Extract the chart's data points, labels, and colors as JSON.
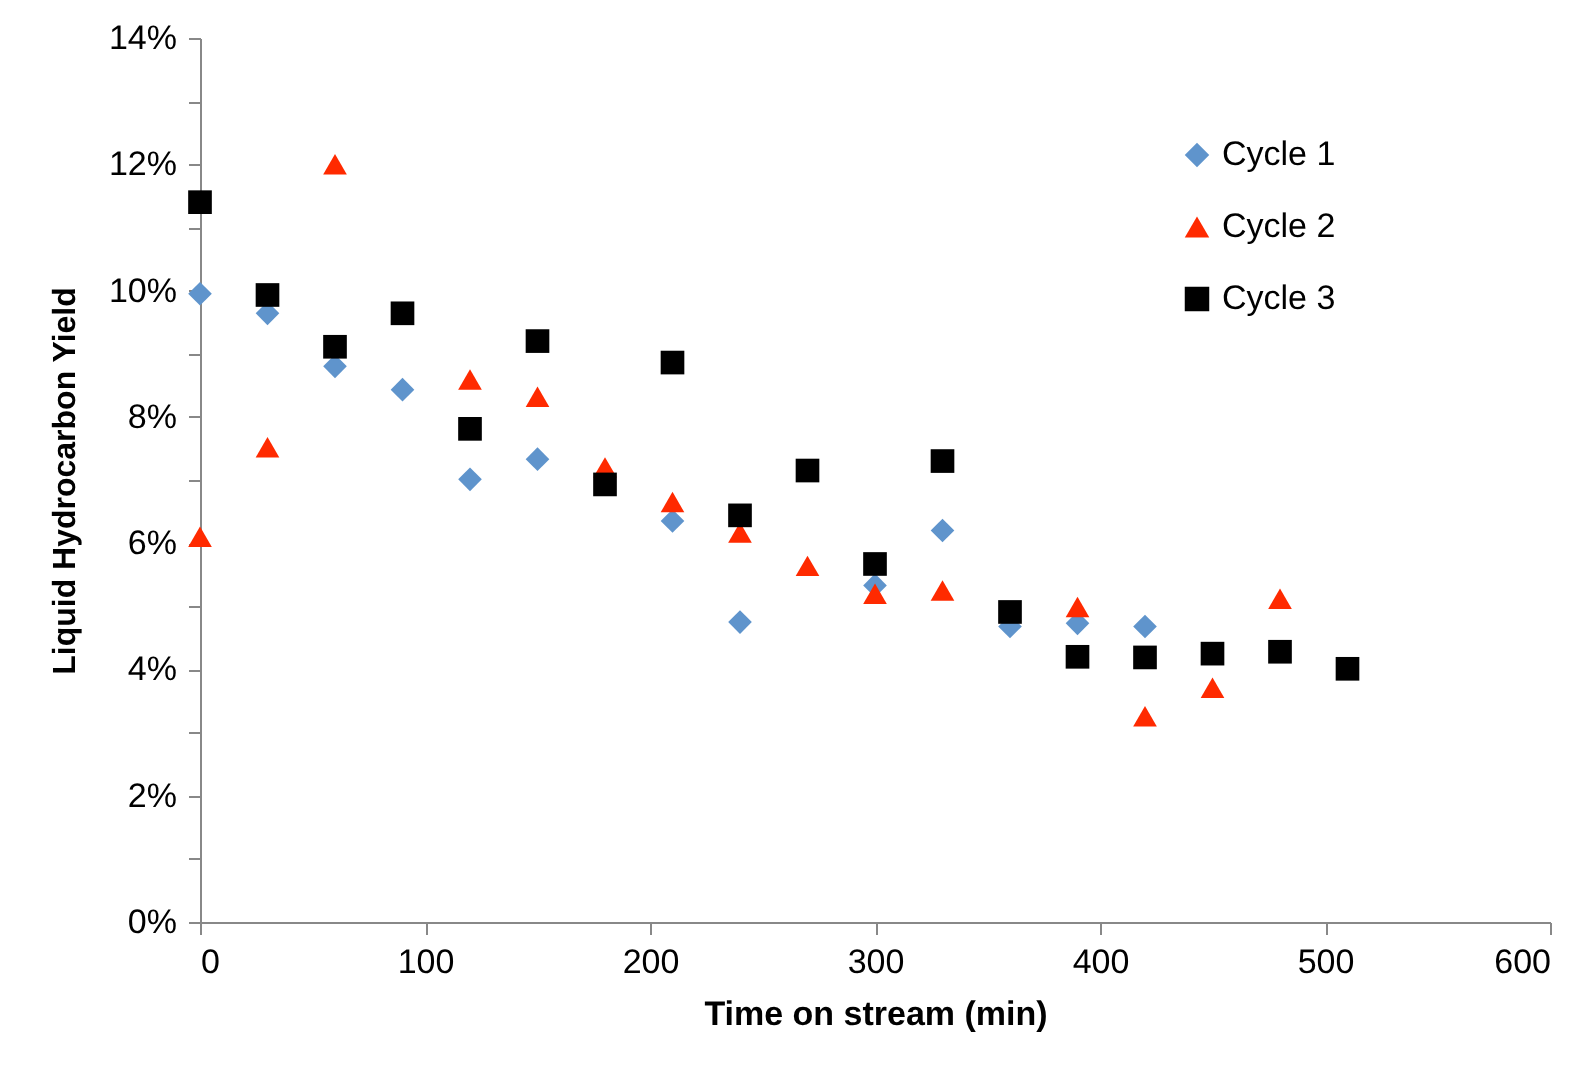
{
  "chart_data": {
    "type": "scatter",
    "xlabel": "Time on stream (min)",
    "ylabel": "Liquid Hydrocarbon Yield",
    "x": [
      0,
      30,
      60,
      90,
      120,
      150,
      180,
      210,
      240,
      270,
      300,
      330,
      360,
      390,
      420,
      450,
      480,
      510
    ],
    "series": [
      {
        "name": "Cycle 1",
        "color": "#5f94cc",
        "marker": "diamond",
        "values": [
          9.95,
          9.64,
          8.8,
          8.43,
          7.01,
          7.33,
          null,
          6.35,
          4.75,
          null,
          5.33,
          6.2,
          4.68,
          4.73,
          4.68,
          null,
          null,
          null
        ]
      },
      {
        "name": "Cycle 2",
        "color": "#ff2a00",
        "marker": "triangle",
        "values": [
          6.1,
          7.52,
          12.0,
          null,
          8.59,
          8.32,
          7.2,
          6.65,
          6.17,
          5.64,
          5.2,
          5.25,
          null,
          4.99,
          3.26,
          3.71,
          5.12,
          null
        ]
      },
      {
        "name": "Cycle 3",
        "color": "#000000",
        "marker": "square",
        "values": [
          11.4,
          9.93,
          9.11,
          9.64,
          7.81,
          9.2,
          6.93,
          8.86,
          6.44,
          7.15,
          5.67,
          7.3,
          4.91,
          4.2,
          4.19,
          4.25,
          4.28,
          4.01
        ]
      }
    ],
    "xlim": [
      0,
      600
    ],
    "xticks": [
      0,
      100,
      200,
      300,
      400,
      500,
      600
    ],
    "ylim": [
      0,
      14
    ],
    "yticks": [
      {
        "value": 0,
        "label": "0%"
      },
      {
        "value": 1,
        "label": null
      },
      {
        "value": 2,
        "label": "2%"
      },
      {
        "value": 3,
        "label": null
      },
      {
        "value": 4,
        "label": "4%"
      },
      {
        "value": 5,
        "label": null
      },
      {
        "value": 6,
        "label": "6%"
      },
      {
        "value": 7,
        "label": null
      },
      {
        "value": 8,
        "label": "8%"
      },
      {
        "value": 9,
        "label": null
      },
      {
        "value": 10,
        "label": "10%"
      },
      {
        "value": 11,
        "label": null
      },
      {
        "value": 12,
        "label": "12%"
      },
      {
        "value": 13,
        "label": null
      },
      {
        "value": 14,
        "label": "14%"
      }
    ],
    "grid": false,
    "legend": "top right"
  }
}
